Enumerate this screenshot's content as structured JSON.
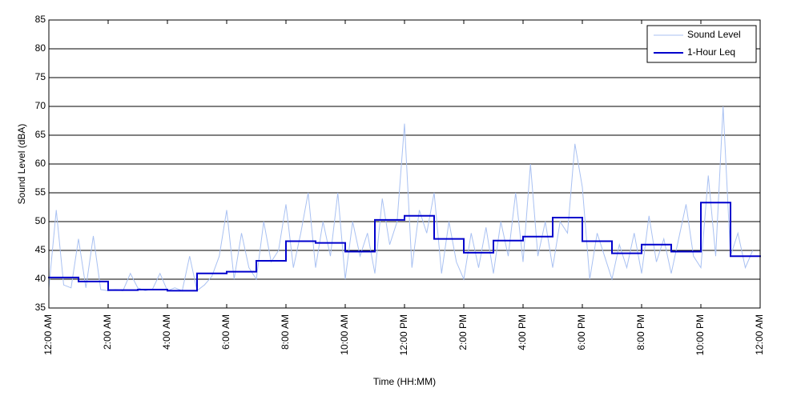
{
  "chart_data": {
    "type": "line",
    "xlabel": "Time (HH:MM)",
    "ylabel": "Sound Level (dBA)",
    "xlim": [
      0,
      24
    ],
    "ylim": [
      35,
      85
    ],
    "yticks": [
      35,
      40,
      45,
      50,
      55,
      60,
      65,
      70,
      75,
      80,
      85
    ],
    "xticks": [
      {
        "value": 0,
        "label": "12:00 AM"
      },
      {
        "value": 2,
        "label": "2:00 AM"
      },
      {
        "value": 4,
        "label": "4:00 AM"
      },
      {
        "value": 6,
        "label": "6:00 AM"
      },
      {
        "value": 8,
        "label": "8:00 AM"
      },
      {
        "value": 10,
        "label": "10:00 AM"
      },
      {
        "value": 12,
        "label": "12:00 PM"
      },
      {
        "value": 14,
        "label": "2:00 PM"
      },
      {
        "value": 16,
        "label": "4:00 PM"
      },
      {
        "value": 18,
        "label": "6:00 PM"
      },
      {
        "value": 20,
        "label": "8:00 PM"
      },
      {
        "value": 22,
        "label": "10:00 PM"
      },
      {
        "value": 24,
        "label": "12:00 AM"
      }
    ],
    "grid": true,
    "legend": "upper right",
    "series": [
      {
        "name": "Sound Level",
        "color": "#a9c1f2",
        "x": [
          0,
          0.25,
          0.5,
          0.75,
          1,
          1.25,
          1.5,
          1.75,
          2,
          2.25,
          2.5,
          2.75,
          3,
          3.25,
          3.5,
          3.75,
          4,
          4.25,
          4.5,
          4.75,
          5,
          5.25,
          5.5,
          5.75,
          6,
          6.25,
          6.5,
          6.75,
          7,
          7.25,
          7.5,
          7.75,
          8,
          8.25,
          8.5,
          8.75,
          9,
          9.25,
          9.5,
          9.75,
          10,
          10.25,
          10.5,
          10.75,
          11,
          11.25,
          11.5,
          11.75,
          12,
          12.25,
          12.5,
          12.75,
          13,
          13.25,
          13.5,
          13.75,
          14,
          14.25,
          14.5,
          14.75,
          15,
          15.25,
          15.5,
          15.75,
          16,
          16.25,
          16.5,
          16.75,
          17,
          17.25,
          17.5,
          17.75,
          18,
          18.25,
          18.5,
          18.75,
          19,
          19.25,
          19.5,
          19.75,
          20,
          20.25,
          20.5,
          20.75,
          21,
          21.25,
          21.5,
          21.75,
          22,
          22.25,
          22.5,
          22.75,
          23,
          23.25,
          23.5,
          23.75
        ],
        "values": [
          38.5,
          52,
          39,
          38.5,
          47,
          38.5,
          47.5,
          38.2,
          38,
          38.2,
          38,
          41,
          38.5,
          38,
          38.3,
          41,
          38,
          38.5,
          38,
          44,
          38,
          39,
          40.5,
          44,
          52,
          40,
          48,
          42,
          40,
          50,
          43,
          45,
          53,
          42,
          48,
          55,
          42,
          50,
          44,
          55,
          40,
          50,
          44,
          48,
          41,
          54,
          46,
          50,
          67,
          42,
          52,
          48,
          55,
          41,
          50,
          43,
          40,
          48,
          42,
          49,
          41,
          50,
          44,
          55,
          43,
          60,
          44,
          50,
          42,
          50,
          48,
          63.5,
          56,
          40,
          48,
          44,
          40,
          46,
          42,
          48,
          41,
          51,
          43,
          47,
          41,
          47,
          53,
          44,
          42,
          58,
          44,
          70,
          44,
          48,
          42,
          45
        ]
      },
      {
        "name": "1-Hour Leq",
        "color": "#0000cc",
        "step": true,
        "x": [
          0,
          1,
          2,
          3,
          4,
          5,
          6,
          7,
          8,
          9,
          10,
          11,
          12,
          13,
          14,
          15,
          16,
          17,
          18,
          19,
          20,
          21,
          22,
          23
        ],
        "values": [
          40.3,
          39.6,
          38.1,
          38.2,
          38.0,
          41.0,
          41.3,
          43.2,
          46.6,
          46.3,
          44.8,
          50.3,
          51.0,
          47.0,
          44.6,
          46.7,
          47.4,
          50.7,
          46.6,
          44.5,
          46.0,
          44.8,
          53.3,
          44.0
        ]
      }
    ]
  }
}
